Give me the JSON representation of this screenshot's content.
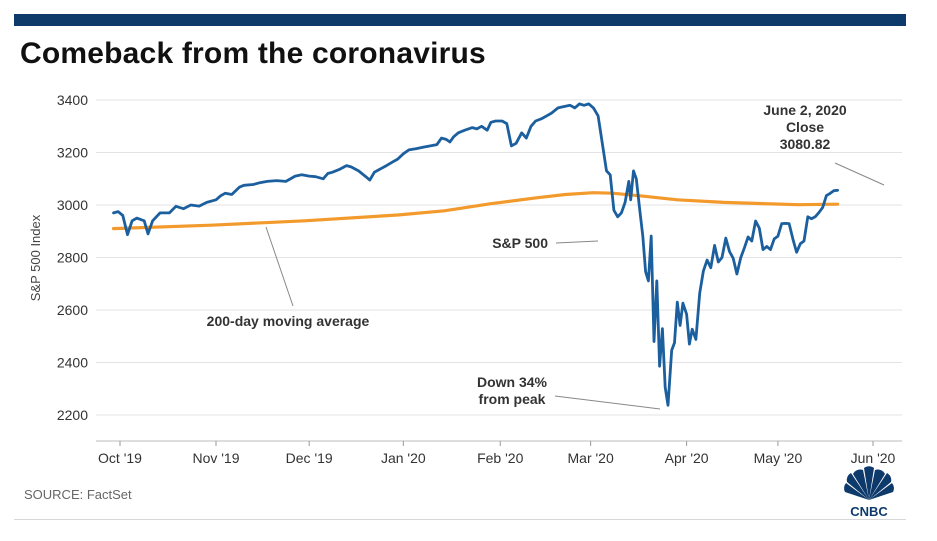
{
  "header": {
    "title": "Comeback from the coronavirus"
  },
  "footer": {
    "source": "SOURCE: FactSet",
    "logo_text": "CNBC"
  },
  "colors": {
    "sp500": "#1c5f9e",
    "ma200": "#f39a2d",
    "bar": "#0e3a6b"
  },
  "chart_data": {
    "type": "line",
    "title": "Comeback from the coronavirus",
    "xlabel": "",
    "ylabel": "S&P 500 Index",
    "ylim": [
      2150,
      3430
    ],
    "yticks": [
      2200,
      2400,
      2600,
      2800,
      3000,
      3200,
      3400
    ],
    "xticks": [
      {
        "label": "Oct '19",
        "t": 0.02
      },
      {
        "label": "Nov '19",
        "t": 1.05
      },
      {
        "label": "Dec '19",
        "t": 2.05
      },
      {
        "label": "Jan '20",
        "t": 3.06
      },
      {
        "label": "Feb '20",
        "t": 4.1
      },
      {
        "label": "Mar '20",
        "t": 5.07
      },
      {
        "label": "Apr '20",
        "t": 6.1
      },
      {
        "label": "May '20",
        "t": 7.08
      },
      {
        "label": "Jun '20",
        "t": 8.1
      }
    ],
    "grid": true,
    "series": [
      {
        "name": "S&P 500",
        "points": [
          [
            -0.05,
            2970
          ],
          [
            0.0,
            2975
          ],
          [
            0.05,
            2960
          ],
          [
            0.1,
            2887
          ],
          [
            0.15,
            2940
          ],
          [
            0.2,
            2950
          ],
          [
            0.28,
            2940
          ],
          [
            0.32,
            2890
          ],
          [
            0.37,
            2940
          ],
          [
            0.45,
            2970
          ],
          [
            0.55,
            2970
          ],
          [
            0.62,
            2995
          ],
          [
            0.7,
            2986
          ],
          [
            0.78,
            3000
          ],
          [
            0.87,
            2996
          ],
          [
            0.95,
            3010
          ],
          [
            1.05,
            3020
          ],
          [
            1.1,
            3035
          ],
          [
            1.15,
            3045
          ],
          [
            1.22,
            3040
          ],
          [
            1.3,
            3068
          ],
          [
            1.35,
            3075
          ],
          [
            1.45,
            3078
          ],
          [
            1.52,
            3085
          ],
          [
            1.6,
            3090
          ],
          [
            1.7,
            3093
          ],
          [
            1.8,
            3090
          ],
          [
            1.9,
            3110
          ],
          [
            1.97,
            3115
          ],
          [
            2.05,
            3110
          ],
          [
            2.12,
            3108
          ],
          [
            2.2,
            3100
          ],
          [
            2.25,
            3120
          ],
          [
            2.3,
            3125
          ],
          [
            2.37,
            3135
          ],
          [
            2.45,
            3150
          ],
          [
            2.5,
            3145
          ],
          [
            2.58,
            3130
          ],
          [
            2.65,
            3110
          ],
          [
            2.7,
            3095
          ],
          [
            2.75,
            3125
          ],
          [
            2.8,
            3135
          ],
          [
            2.88,
            3150
          ],
          [
            2.95,
            3165
          ],
          [
            3.0,
            3175
          ],
          [
            3.06,
            3195
          ],
          [
            3.12,
            3210
          ],
          [
            3.2,
            3215
          ],
          [
            3.27,
            3220
          ],
          [
            3.35,
            3225
          ],
          [
            3.42,
            3230
          ],
          [
            3.47,
            3255
          ],
          [
            3.52,
            3250
          ],
          [
            3.56,
            3240
          ],
          [
            3.6,
            3260
          ],
          [
            3.65,
            3275
          ],
          [
            3.72,
            3285
          ],
          [
            3.8,
            3295
          ],
          [
            3.85,
            3290
          ],
          [
            3.9,
            3300
          ],
          [
            3.96,
            3285
          ],
          [
            4.0,
            3315
          ],
          [
            4.05,
            3320
          ],
          [
            4.12,
            3320
          ],
          [
            4.17,
            3310
          ],
          [
            4.22,
            3225
          ],
          [
            4.27,
            3235
          ],
          [
            4.33,
            3275
          ],
          [
            4.38,
            3255
          ],
          [
            4.43,
            3300
          ],
          [
            4.48,
            3320
          ],
          [
            4.55,
            3330
          ],
          [
            4.6,
            3340
          ],
          [
            4.65,
            3350
          ],
          [
            4.72,
            3370
          ],
          [
            4.78,
            3375
          ],
          [
            4.85,
            3380
          ],
          [
            4.9,
            3370
          ],
          [
            4.95,
            3385
          ],
          [
            5.0,
            3380
          ],
          [
            5.05,
            3385
          ],
          [
            5.1,
            3370
          ],
          [
            5.15,
            3340
          ],
          [
            5.2,
            3225
          ],
          [
            5.24,
            3130
          ],
          [
            5.28,
            3115
          ],
          [
            5.32,
            2980
          ],
          [
            5.36,
            2955
          ],
          [
            5.4,
            2970
          ],
          [
            5.44,
            3010
          ],
          [
            5.48,
            3090
          ],
          [
            5.5,
            3020
          ],
          [
            5.53,
            3130
          ],
          [
            5.56,
            3100
          ],
          [
            5.6,
            2973
          ],
          [
            5.63,
            2882
          ],
          [
            5.66,
            2746
          ],
          [
            5.69,
            2711
          ],
          [
            5.72,
            2882
          ],
          [
            5.75,
            2480
          ],
          [
            5.78,
            2711
          ],
          [
            5.81,
            2386
          ],
          [
            5.84,
            2529
          ],
          [
            5.87,
            2305
          ],
          [
            5.9,
            2237
          ],
          [
            5.94,
            2447
          ],
          [
            5.97,
            2475
          ],
          [
            6.0,
            2630
          ],
          [
            6.03,
            2541
          ],
          [
            6.06,
            2626
          ],
          [
            6.1,
            2584
          ],
          [
            6.13,
            2470
          ],
          [
            6.16,
            2527
          ],
          [
            6.2,
            2488
          ],
          [
            6.24,
            2664
          ],
          [
            6.28,
            2749
          ],
          [
            6.32,
            2790
          ],
          [
            6.36,
            2761
          ],
          [
            6.4,
            2846
          ],
          [
            6.44,
            2783
          ],
          [
            6.48,
            2800
          ],
          [
            6.52,
            2874
          ],
          [
            6.56,
            2823
          ],
          [
            6.6,
            2797
          ],
          [
            6.64,
            2737
          ],
          [
            6.68,
            2799
          ],
          [
            6.72,
            2837
          ],
          [
            6.76,
            2878
          ],
          [
            6.8,
            2863
          ],
          [
            6.84,
            2939
          ],
          [
            6.88,
            2912
          ],
          [
            6.92,
            2830
          ],
          [
            6.96,
            2842
          ],
          [
            7.0,
            2830
          ],
          [
            7.04,
            2871
          ],
          [
            7.08,
            2881
          ],
          [
            7.12,
            2929
          ],
          [
            7.16,
            2930
          ],
          [
            7.2,
            2929
          ],
          [
            7.24,
            2870
          ],
          [
            7.28,
            2820
          ],
          [
            7.32,
            2852
          ],
          [
            7.36,
            2863
          ],
          [
            7.4,
            2955
          ],
          [
            7.44,
            2948
          ],
          [
            7.48,
            2955
          ],
          [
            7.52,
            2971
          ],
          [
            7.56,
            2991
          ],
          [
            7.6,
            3036
          ],
          [
            7.64,
            3044
          ],
          [
            7.68,
            3055
          ],
          [
            7.72,
            3056
          ]
        ]
      },
      {
        "name": "200-day moving average",
        "points": [
          [
            -0.05,
            2910
          ],
          [
            1.0,
            2923
          ],
          [
            2.0,
            2940
          ],
          [
            3.0,
            2962
          ],
          [
            3.5,
            2978
          ],
          [
            4.0,
            3005
          ],
          [
            4.5,
            3028
          ],
          [
            4.8,
            3040
          ],
          [
            5.1,
            3047
          ],
          [
            5.3,
            3045
          ],
          [
            5.6,
            3035
          ],
          [
            6.0,
            3020
          ],
          [
            6.5,
            3010
          ],
          [
            7.0,
            3004
          ],
          [
            7.3,
            3001
          ],
          [
            7.72,
            3003
          ]
        ]
      }
    ],
    "annotations": [
      {
        "lines": [
          "June 2, 2020",
          "Close",
          "3080.82"
        ]
      },
      {
        "lines": [
          "S&P 500"
        ]
      },
      {
        "lines": [
          "200-day moving average"
        ]
      },
      {
        "lines": [
          "Down 34%",
          "from peak"
        ]
      }
    ]
  }
}
